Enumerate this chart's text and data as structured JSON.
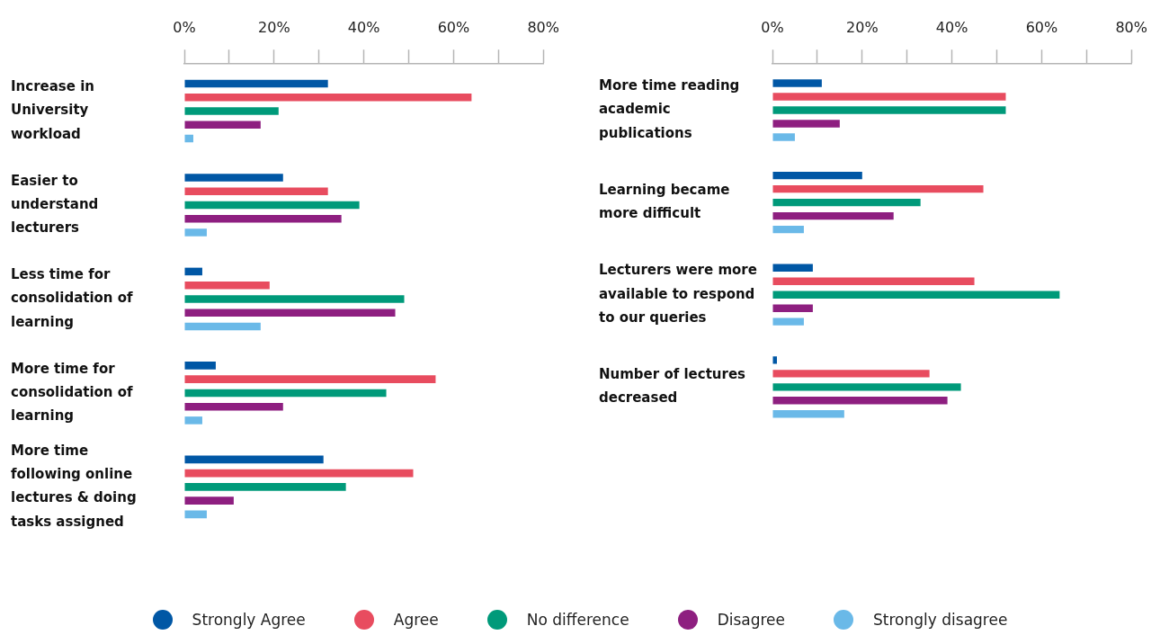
{
  "chart_data": [
    {
      "type": "bar",
      "orientation": "horizontal",
      "legend": "bottom",
      "categories": [
        "Increase in University workload",
        "Easier to understand lecturers",
        "Less time for consolidation of learning",
        "More time for consolidation of learning",
        "More time following online lectures & doing tasks assigned"
      ],
      "series": [
        {
          "name": "Strongly Agree",
          "color": "#0057a5",
          "values": [
            32,
            22,
            4,
            7,
            31
          ]
        },
        {
          "name": "Agree",
          "color": "#e84c5f",
          "values": [
            64,
            32,
            19,
            56,
            51
          ]
        },
        {
          "name": "No difference",
          "color": "#009a7a",
          "values": [
            21,
            39,
            49,
            45,
            36
          ]
        },
        {
          "name": "Disagree",
          "color": "#8e1f80",
          "values": [
            17,
            35,
            47,
            22,
            11
          ]
        },
        {
          "name": "Strongly disagree",
          "color": "#6ab9e8",
          "values": [
            2,
            5,
            17,
            4,
            5
          ]
        }
      ],
      "xlim": [
        0,
        80
      ],
      "xticks": [
        {
          "value": 0,
          "label": "0%"
        },
        {
          "value": 10,
          "label": null
        },
        {
          "value": 20,
          "label": "20%"
        },
        {
          "value": 30,
          "label": null
        },
        {
          "value": 40,
          "label": "40%"
        },
        {
          "value": 50,
          "label": null
        },
        {
          "value": 60,
          "label": "60%"
        },
        {
          "value": 70,
          "label": null
        },
        {
          "value": 80,
          "label": "80%"
        }
      ]
    },
    {
      "type": "bar",
      "orientation": "horizontal",
      "categories": [
        "More time reading academic publications",
        "Learning became more difficult",
        "Lecturers were more available to respond to our queries",
        "Number of lectures decreased"
      ],
      "series": [
        {
          "color": "#0057a5",
          "values": [
            11,
            20,
            9,
            1
          ]
        },
        {
          "color": "#e84c5f",
          "values": [
            52,
            47,
            45,
            35
          ]
        },
        {
          "color": "#009a7a",
          "values": [
            52,
            33,
            64,
            42
          ]
        },
        {
          "color": "#8e1f80",
          "values": [
            15,
            27,
            9,
            39
          ]
        },
        {
          "color": "#6ab9e8",
          "values": [
            5,
            7,
            7,
            16
          ]
        }
      ],
      "xlim": [
        0,
        80
      ],
      "xticks": [
        {
          "value": 0,
          "label": "0%"
        },
        {
          "value": 10,
          "label": null
        },
        {
          "value": 20,
          "label": "20%"
        },
        {
          "value": 30,
          "label": null
        },
        {
          "value": 40,
          "label": "40%"
        },
        {
          "value": 50,
          "label": null
        },
        {
          "value": 60,
          "label": "60%"
        },
        {
          "value": 70,
          "label": null
        },
        {
          "value": 80,
          "label": "80%"
        }
      ]
    }
  ]
}
